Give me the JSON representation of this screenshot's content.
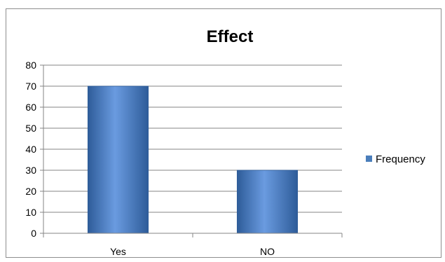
{
  "chart_data": {
    "type": "bar",
    "title": "Effect",
    "categories": [
      "Yes",
      "NO"
    ],
    "series": [
      {
        "name": "Frequency",
        "values": [
          70,
          30
        ]
      }
    ],
    "ylim": [
      0,
      80
    ],
    "yticks": [
      0,
      10,
      20,
      30,
      40,
      50,
      60,
      70,
      80
    ],
    "grid": true,
    "legend_position": "right",
    "colors": {
      "bar": "#4a7ebb",
      "bar_light": "#6a9be0",
      "bar_dark": "#2e5c99",
      "grid": "#868686",
      "axis": "#868686"
    }
  }
}
